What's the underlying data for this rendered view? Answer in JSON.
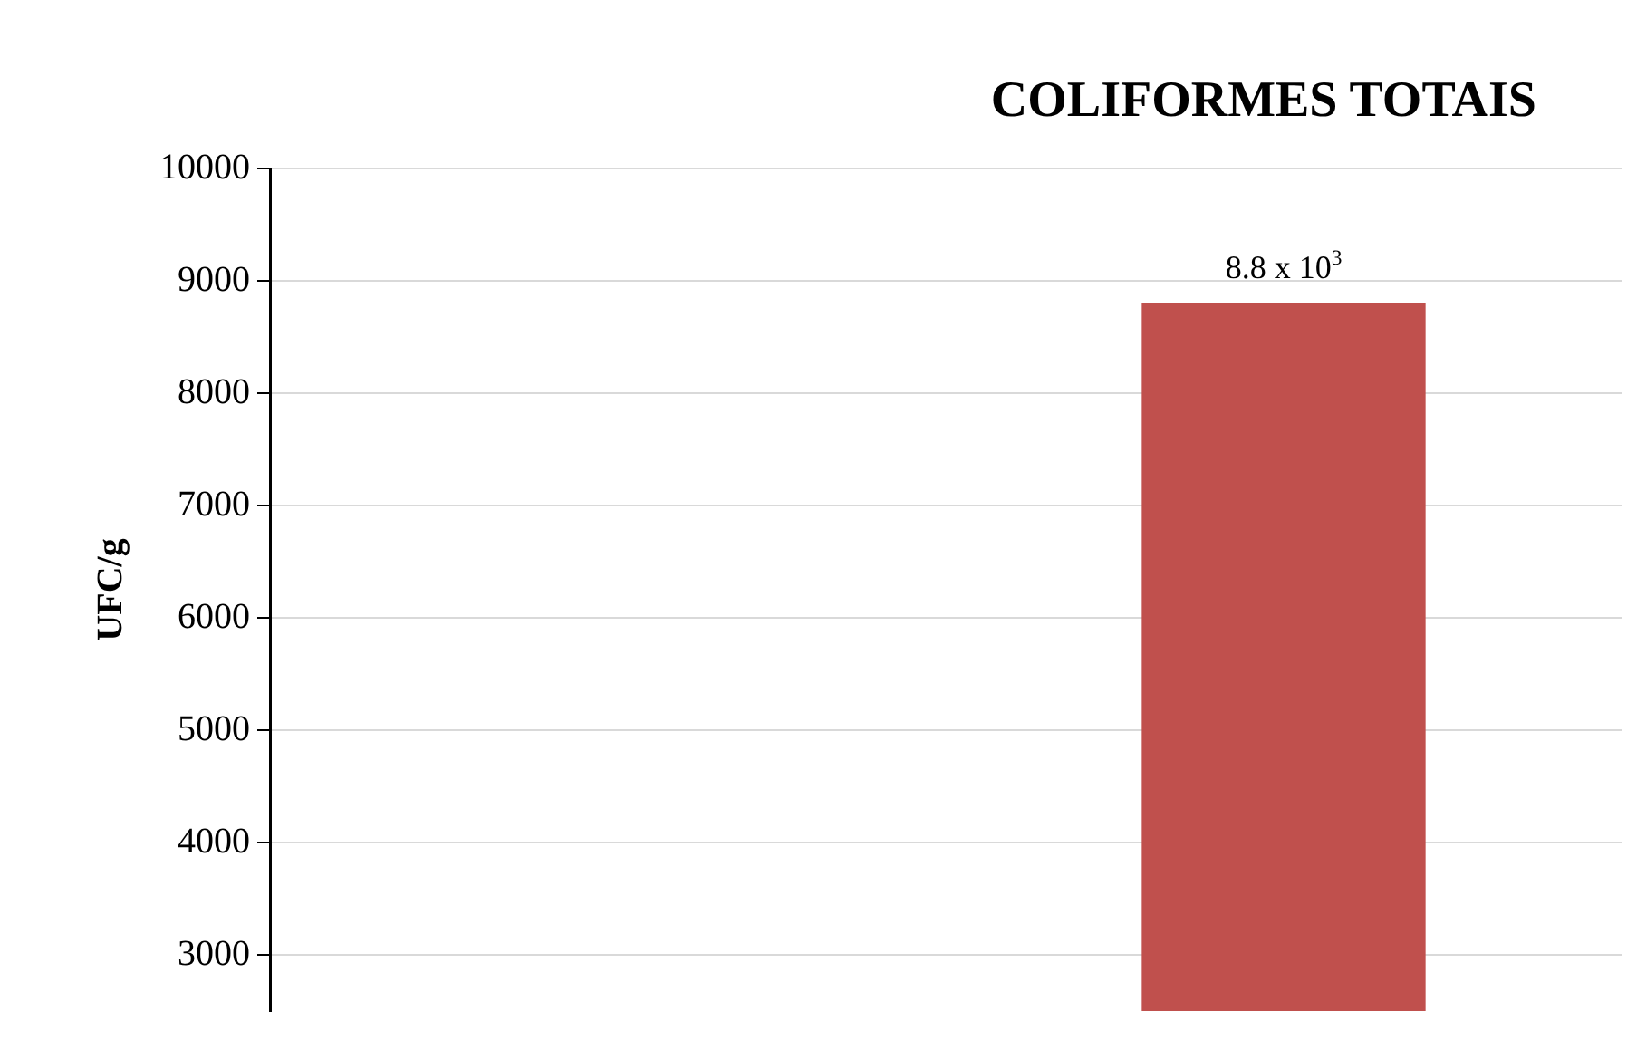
{
  "chart_data": {
    "type": "bar",
    "title": "COLIFORMES TOTAIS",
    "ylabel": "UFC/g",
    "categories": [
      null,
      null
    ],
    "series": [
      {
        "color": "#c0504d",
        "values": [
          null,
          8800
        ],
        "value_labels": [
          null,
          "8.8 x 10$^{3}$"
        ]
      }
    ],
    "ylim": [
      2500,
      10000
    ],
    "yticks": [
      3000,
      4000,
      5000,
      6000,
      7000,
      8000,
      9000,
      10000
    ],
    "grid": "y",
    "legend": false
  }
}
